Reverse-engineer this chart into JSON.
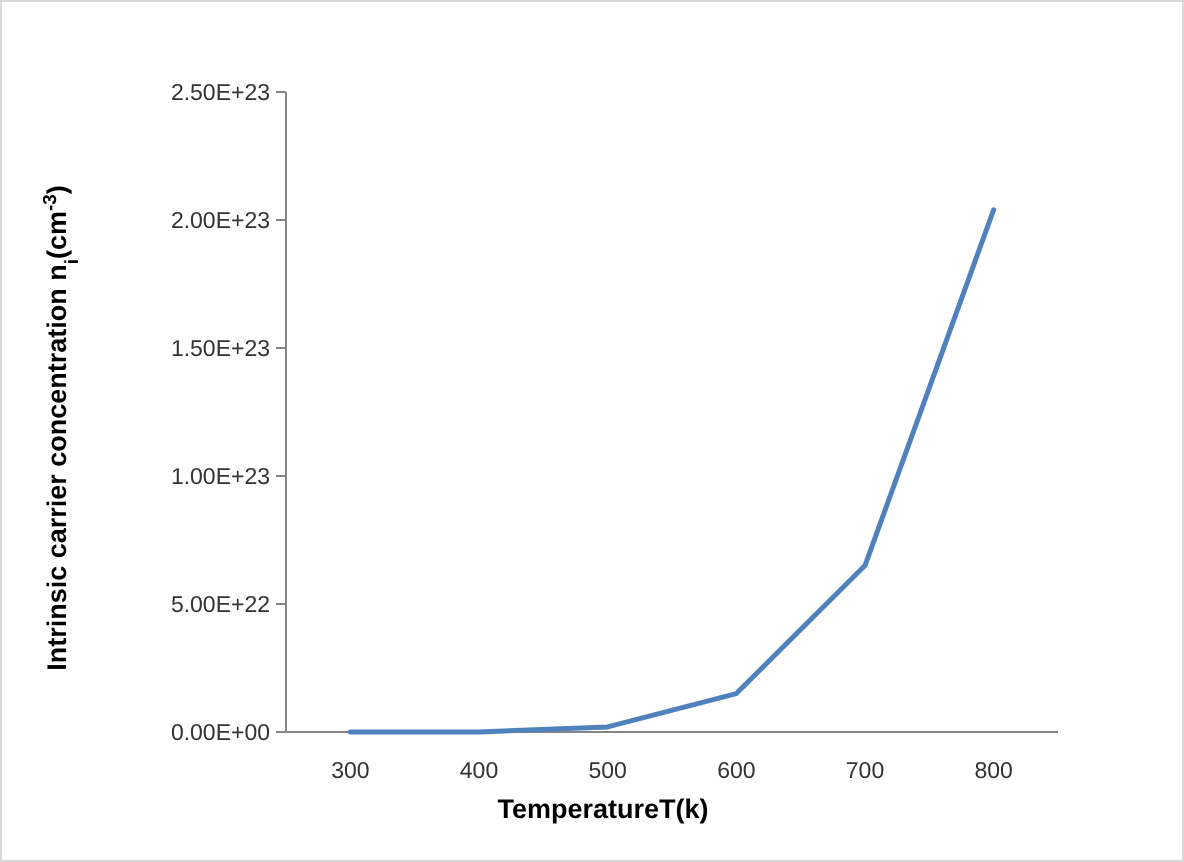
{
  "chart_data": {
    "type": "line",
    "xlabel": "TemperatureT(k)",
    "ylabel": "Intrinsic carrier concentration n$_{i}$(cm$^{-3}$)",
    "categories": [
      "300",
      "400",
      "500",
      "600",
      "700",
      "800"
    ],
    "series": [
      {
        "color": "#4f81bd",
        "values": [
          0,
          0,
          2e+21,
          1.5e+22,
          6.5e+22,
          2.04e+23
        ]
      }
    ],
    "ylim": [
      0,
      2.5e+23
    ],
    "yticks": [
      {
        "value": 0,
        "label": "0.00E+00"
      },
      {
        "value": 5e+22,
        "label": "5.00E+22"
      },
      {
        "value": 1e+23,
        "label": "1.00E+23"
      },
      {
        "value": 1.5e+23,
        "label": "1.50E+23"
      },
      {
        "value": 2e+23,
        "label": "2.00E+23"
      },
      {
        "value": 2.5e+23,
        "label": "2.50E+23"
      }
    ],
    "marker": "none",
    "line_style": "solid"
  }
}
